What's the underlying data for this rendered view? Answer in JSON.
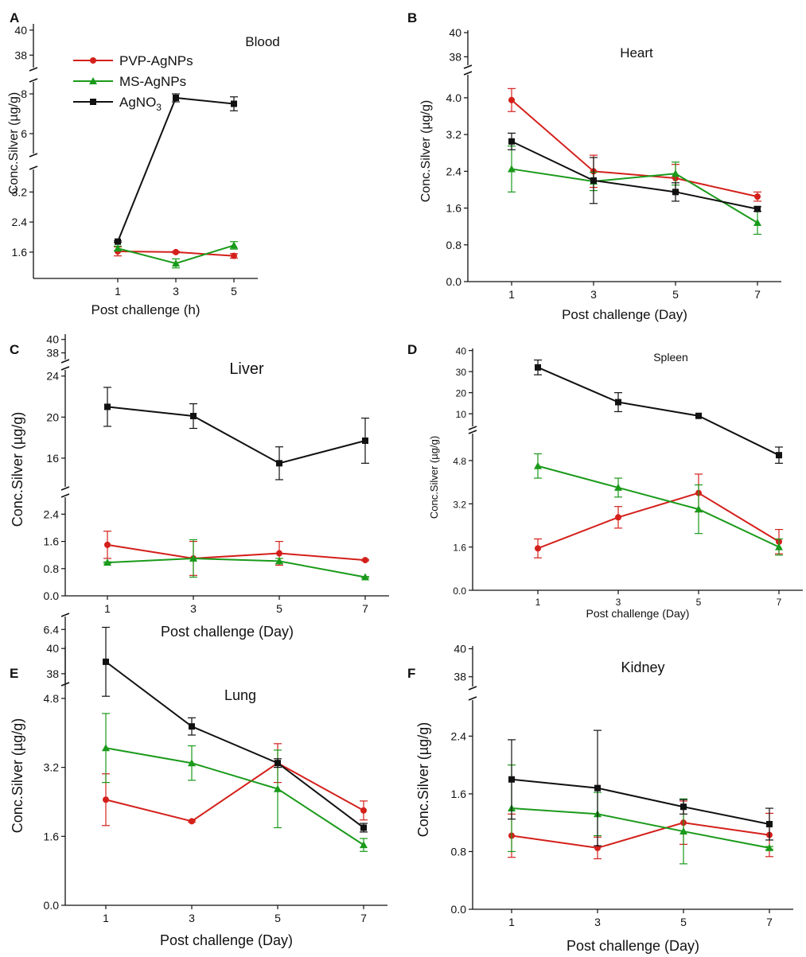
{
  "colors": {
    "pvp": "#d4201b",
    "ms": "#1a9a1a",
    "agno3": "#111111",
    "axis": "#111111"
  },
  "legend": {
    "entries": [
      {
        "name": "PVP-AgNPs",
        "marker": "circle",
        "color": "#d4201b"
      },
      {
        "name": "MS-AgNPs",
        "marker": "triangle",
        "color": "#1a9a1a"
      },
      {
        "name": "AgNO",
        "sub": "3",
        "marker": "square",
        "color": "#111111"
      }
    ]
  },
  "chart_data": [
    {
      "panel": "A",
      "type": "line",
      "title": "Blood",
      "xlabel": "Post challenge (h)",
      "ylabel": "Conc.Silver (µg/g)",
      "x": [
        1,
        3,
        5
      ],
      "xticks": [
        "1",
        "3",
        "5"
      ],
      "broken_y": true,
      "segments": [
        {
          "range": [
            0.9,
            3.8
          ],
          "ticks": [
            "1.6",
            "2.4",
            "3.2"
          ]
        },
        {
          "range": [
            5.0,
            8.6
          ],
          "ticks": [
            "6",
            "8"
          ]
        },
        {
          "range": [
            37.0,
            40.5
          ],
          "ticks": [
            "38",
            "40"
          ]
        }
      ],
      "series": [
        {
          "name": "PVP-AgNPs",
          "values": [
            1.62,
            1.6,
            1.5
          ],
          "errors": [
            0.12,
            0.02,
            0.06
          ]
        },
        {
          "name": "MS-AgNPs",
          "values": [
            1.7,
            1.3,
            1.78
          ],
          "errors": [
            0.06,
            0.12,
            0.1
          ]
        },
        {
          "name": "AgNO3",
          "values": [
            1.88,
            7.8,
            7.5
          ],
          "errors": [
            0.02,
            0.2,
            0.35
          ]
        }
      ]
    },
    {
      "panel": "B",
      "type": "line",
      "title": "Heart",
      "xlabel": "Post challenge (Day)",
      "ylabel": "Conc.Silver (µg/g)",
      "x": [
        1,
        3,
        5,
        7
      ],
      "xticks": [
        "1",
        "3",
        "5",
        "7"
      ],
      "broken_y": true,
      "segments": [
        {
          "range": [
            0,
            4.5
          ],
          "ticks": [
            "0.0",
            "0.8",
            "1.6",
            "2.4",
            "3.2",
            "4.0"
          ]
        },
        {
          "range": [
            37.3,
            40.2
          ],
          "ticks": [
            "38",
            "40"
          ]
        }
      ],
      "series": [
        {
          "name": "PVP-AgNPs",
          "values": [
            3.95,
            2.4,
            2.25,
            1.85
          ],
          "errors": [
            0.25,
            0.35,
            0.3,
            0.1
          ]
        },
        {
          "name": "MS-AgNPs",
          "values": [
            2.45,
            2.18,
            2.35,
            1.28
          ],
          "errors": [
            0.5,
            0.2,
            0.25,
            0.25
          ]
        },
        {
          "name": "AgNO3",
          "values": [
            3.05,
            2.2,
            1.95,
            1.58
          ],
          "errors": [
            0.18,
            0.5,
            0.2,
            0.05
          ]
        }
      ]
    },
    {
      "panel": "C",
      "type": "line",
      "title": "Liver",
      "xlabel": "Post challenge (Day)",
      "ylabel": "Conc.Silver (µg/g)",
      "x": [
        1,
        3,
        5,
        7
      ],
      "xticks": [
        "1",
        "3",
        "5",
        "7"
      ],
      "broken_y": true,
      "segments": [
        {
          "range": [
            0,
            2.9
          ],
          "ticks": [
            "0.0",
            "0.8",
            "1.6",
            "2.4"
          ]
        },
        {
          "range": [
            13.2,
            24.6
          ],
          "ticks": [
            "16",
            "20",
            "24"
          ]
        },
        {
          "range": [
            37.0,
            40.8
          ],
          "ticks": [
            "38",
            "40"
          ]
        }
      ],
      "series": [
        {
          "name": "PVP-AgNPs",
          "values": [
            1.5,
            1.1,
            1.25,
            1.05
          ],
          "errors": [
            0.4,
            0.5,
            0.35,
            0.02
          ]
        },
        {
          "name": "MS-AgNPs",
          "values": [
            0.98,
            1.1,
            1.02,
            0.55
          ],
          "errors": [
            0.02,
            0.55,
            0.08,
            0.02
          ]
        },
        {
          "name": "AgNO3",
          "values": [
            21.0,
            20.1,
            15.5,
            17.7
          ],
          "errors": [
            1.9,
            1.2,
            1.6,
            2.2
          ]
        }
      ]
    },
    {
      "panel": "D",
      "type": "line",
      "title": "Spleen",
      "xlabel": "Post challenge (Day)",
      "ylabel": "Conc.Silver (µg/g)",
      "x": [
        1,
        3,
        5,
        7
      ],
      "xticks": [
        "1",
        "3",
        "5",
        "7"
      ],
      "broken_y": true,
      "segments": [
        {
          "range": [
            0,
            5.8
          ],
          "ticks": [
            "0.0",
            "1.6",
            "3.2",
            "4.8"
          ]
        },
        {
          "range": [
            4.0,
            41.0
          ],
          "ticks": [
            "10",
            "20",
            "30",
            "40"
          ]
        }
      ],
      "series": [
        {
          "name": "PVP-AgNPs",
          "values": [
            1.55,
            2.7,
            3.6,
            1.8
          ],
          "errors": [
            0.35,
            0.4,
            0.7,
            0.45
          ]
        },
        {
          "name": "MS-AgNPs",
          "values": [
            4.6,
            3.8,
            3.0,
            1.6
          ],
          "errors": [
            0.45,
            0.35,
            0.9,
            0.3
          ]
        },
        {
          "name": "AgNO3",
          "values": [
            32.0,
            15.5,
            9.0,
            5.0
          ],
          "errors": [
            3.5,
            4.5,
            0,
            0.3
          ]
        }
      ]
    },
    {
      "panel": "E",
      "type": "line",
      "title": "Lung",
      "xlabel": "Post challenge (Day)",
      "ylabel": "Conc.Silver (µg/g)",
      "x": [
        1,
        3,
        5,
        7
      ],
      "xticks": [
        "1",
        "3",
        "5",
        "7"
      ],
      "broken_y": true,
      "segments": [
        {
          "range": [
            0,
            6.7
          ],
          "ticks": [
            "0.0",
            "1.6",
            "3.2",
            "4.8",
            "6.4"
          ]
        },
        {
          "range": [
            37.3,
            40.2
          ],
          "ticks": [
            "38",
            "40"
          ]
        }
      ],
      "series": [
        {
          "name": "PVP-AgNPs",
          "values": [
            2.45,
            1.95,
            3.3,
            2.2
          ],
          "errors": [
            0.6,
            0.02,
            0.45,
            0.22
          ]
        },
        {
          "name": "MS-AgNPs",
          "values": [
            3.65,
            3.3,
            2.7,
            1.4
          ],
          "errors": [
            0.8,
            0.4,
            0.9,
            0.15
          ]
        },
        {
          "name": "AgNO3",
          "values": [
            5.65,
            4.15,
            3.3,
            1.8
          ],
          "errors": [
            0.8,
            0.2,
            0.1,
            0.1
          ]
        }
      ]
    },
    {
      "panel": "F",
      "type": "line",
      "title": "Kidney",
      "xlabel": "Post challenge (Day)",
      "ylabel": "Conc.Silver (µg/g)",
      "x": [
        1,
        3,
        5,
        7
      ],
      "xticks": [
        "1",
        "3",
        "5",
        "7"
      ],
      "broken_y": true,
      "segments": [
        {
          "range": [
            0,
            2.9
          ],
          "ticks": [
            "0.0",
            "0.8",
            "1.6",
            "2.4"
          ]
        },
        {
          "range": [
            37.3,
            40.2
          ],
          "ticks": [
            "38",
            "40"
          ]
        }
      ],
      "series": [
        {
          "name": "PVP-AgNPs",
          "values": [
            1.02,
            0.85,
            1.2,
            1.03
          ],
          "errors": [
            0.3,
            0.15,
            0.3,
            0.3
          ]
        },
        {
          "name": "MS-AgNPs",
          "values": [
            1.4,
            1.32,
            1.08,
            0.85
          ],
          "errors": [
            0.6,
            0.3,
            0.45,
            0.02
          ]
        },
        {
          "name": "AgNO3",
          "values": [
            1.8,
            1.68,
            1.42,
            1.18
          ],
          "errors": [
            0.55,
            0.8,
            0.1,
            0.22
          ]
        }
      ]
    }
  ]
}
